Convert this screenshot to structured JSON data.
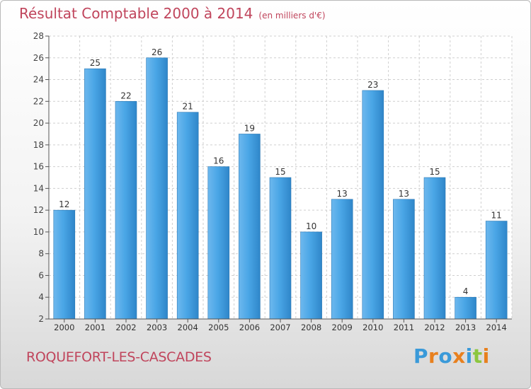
{
  "title": "Résultat Comptable 2000 à 2014",
  "unit_note": "(en milliers d'€)",
  "commune": "ROQUEFORT-LES-CASCADES",
  "logo": {
    "text": "Proxiti",
    "letter_colors": [
      "#3a9ad9",
      "#e8801e",
      "#3a9ad9",
      "#e8801e",
      "#3a9ad9",
      "#8cc63f",
      "#e8801e"
    ]
  },
  "colors": {
    "bar": "#3d93d6",
    "bar_light": "#6db8ee",
    "text_accent": "#c0455c",
    "grid": "#cfcfcf"
  },
  "chart_data": {
    "type": "bar",
    "title": "Résultat Comptable 2000 à 2014",
    "subtitle": "(en milliers d'€)",
    "categories": [
      "2000",
      "2001",
      "2002",
      "2003",
      "2004",
      "2005",
      "2006",
      "2007",
      "2008",
      "2009",
      "2010",
      "2011",
      "2012",
      "2013",
      "2014"
    ],
    "values": [
      12,
      25,
      22,
      26,
      21,
      16,
      19,
      15,
      10,
      13,
      23,
      13,
      15,
      4,
      11
    ],
    "data_labels": [
      "12",
      "25",
      "22",
      "26",
      "21",
      "16",
      "19",
      "15",
      "10",
      "13",
      "23",
      "13",
      "15",
      "4",
      "11"
    ],
    "ylim": [
      2,
      28
    ],
    "yticks": [
      2,
      4,
      6,
      8,
      10,
      12,
      14,
      16,
      18,
      20,
      22,
      24,
      26,
      28
    ],
    "grid": true,
    "xlabel": "",
    "ylabel": ""
  }
}
